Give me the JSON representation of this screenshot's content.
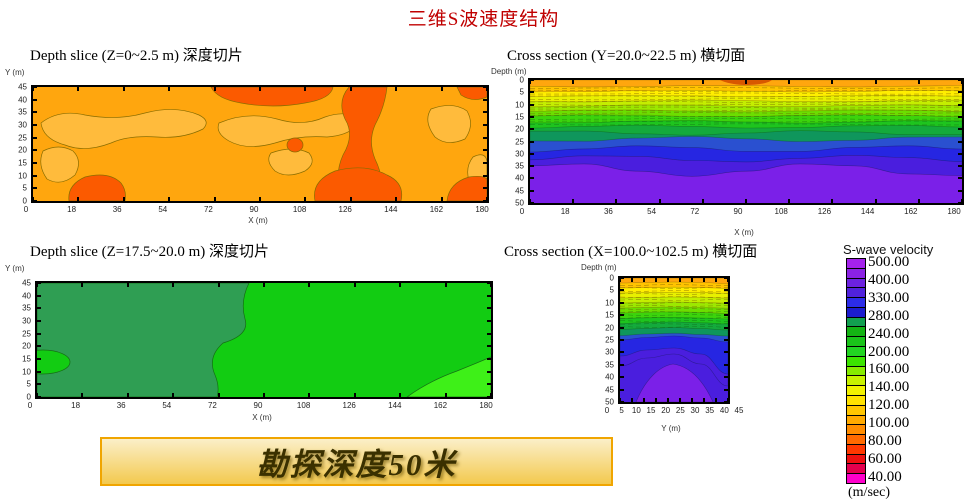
{
  "page": {
    "title": "三维S波速度结构"
  },
  "banner": {
    "text": "勘探深度50米"
  },
  "colors": {
    "title_red": "#C00000",
    "banner_border": "#F0A500",
    "banner_bg_top": "#FBEFC8",
    "banner_bg_bottom": "#F3C94E",
    "banner_text": "#3A3000",
    "orange_main": "#FFA60E",
    "orange_light": "#FFBB3C",
    "red_orange": "#FB5A00",
    "contour_line_warm": "#8A6D00",
    "green_dark": "#2F9E53",
    "green_bright": "#12CC12",
    "green_light": "#3EF018",
    "contour_line_green": "#156E15",
    "purple": "#7B20E8"
  },
  "legend": {
    "title": "S-wave velocity",
    "unit": "(m/sec)",
    "labels": [
      "500.00",
      "400.00",
      "330.00",
      "280.00",
      "240.00",
      "200.00",
      "160.00",
      "140.00",
      "120.00",
      "100.00",
      "80.00",
      "60.00",
      "40.00"
    ],
    "cell_colors": [
      "#A422EC",
      "#8B22E4",
      "#6C22E0",
      "#5022DC",
      "#2C2CE8",
      "#1C1CCE",
      "#12A050",
      "#14B414",
      "#1AC41A",
      "#22D422",
      "#3CE400",
      "#86EC00",
      "#C8F200",
      "#F2F200",
      "#FFE200",
      "#FFC600",
      "#FFAA00",
      "#FF8C00",
      "#FF6A00",
      "#FF3800",
      "#EE1010",
      "#E4004E",
      "#FF00CC"
    ]
  },
  "chart_data": [
    {
      "type": "contour",
      "title": "Depth slice (Z=0~2.5 m) 深度切片",
      "xlabel": "X (m)",
      "ylabel": "Y (m)",
      "xlim": [
        0,
        180
      ],
      "ylim": [
        0,
        45
      ],
      "xticks": [
        0,
        18,
        36,
        54,
        72,
        90,
        108,
        126,
        144,
        162,
        180
      ],
      "yticks": [
        45,
        40,
        35,
        30,
        25,
        20,
        15,
        10,
        5,
        0
      ],
      "bands": [
        {
          "vs_m_sec": "80-100",
          "color": "#FB5A00",
          "note": "red-orange anomalies: patch along top edge x≈70-120 m, vertical zone x≈125-150 m spanning full height, patches along bottom edge, top-right corner"
        },
        {
          "vs_m_sec": "100-120",
          "color": "#FFA60E",
          "note": "dominant orange background"
        },
        {
          "vs_m_sec": "120-140",
          "color": "#FFBB3C",
          "note": "lighter lobes: upper-left band, left-middle blob, centre band x≈75-130 m, right-side patches"
        }
      ]
    },
    {
      "type": "contour",
      "title": "Cross section (Y=20.0~22.5 m) 横切面",
      "xlabel": "X (m)",
      "ylabel": "Depth (m)",
      "xlim": [
        0,
        180
      ],
      "ylim": [
        0,
        50
      ],
      "xticks": [
        0,
        18,
        36,
        54,
        72,
        90,
        108,
        126,
        144,
        162,
        180
      ],
      "yticks": [
        0,
        5,
        10,
        15,
        20,
        25,
        30,
        35,
        40,
        45,
        50
      ],
      "layers": [
        {
          "top_m": 0,
          "bottom_m": 2.5,
          "vs_m_sec": "100-120",
          "color": "#FFA60E"
        },
        {
          "top_m": 2.5,
          "bottom_m": 4.5,
          "vs_m_sec": "120-140",
          "color": "#FFC400"
        },
        {
          "top_m": 4.5,
          "bottom_m": 6.5,
          "vs_m_sec": "140",
          "color": "#FFEE00"
        },
        {
          "top_m": 6.5,
          "bottom_m": 8.5,
          "vs_m_sec": "150",
          "color": "#E8F000"
        },
        {
          "top_m": 8.5,
          "bottom_m": 10.5,
          "vs_m_sec": "160",
          "color": "#C4EE00"
        },
        {
          "top_m": 10.5,
          "bottom_m": 12.5,
          "vs_m_sec": "170",
          "color": "#9CE800"
        },
        {
          "top_m": 12.5,
          "bottom_m": 14.5,
          "vs_m_sec": "180-200",
          "color": "#6CDE00"
        },
        {
          "top_m": 14.5,
          "bottom_m": 17,
          "vs_m_sec": "200-220",
          "color": "#3CD40C"
        },
        {
          "top_m": 17,
          "bottom_m": 19,
          "vs_m_sec": "220-240",
          "color": "#1EC41E"
        },
        {
          "top_m": 19,
          "bottom_m": 21.5,
          "vs_m_sec": "240-260",
          "color": "#14AA3C"
        },
        {
          "top_m": 21.5,
          "bottom_m": 24,
          "vs_m_sec": "260-280",
          "color": "#0F965C"
        },
        {
          "top_m": 24,
          "bottom_m": 28,
          "vs_m_sec": "280-330",
          "color": "#2A50D0"
        },
        {
          "top_m": 28,
          "bottom_m": 32,
          "vs_m_sec": "330-400",
          "color": "#2626E2"
        },
        {
          "top_m": 32,
          "bottom_m": 36.5,
          "vs_m_sec": "400-500",
          "color": "#4A1EDE"
        },
        {
          "top_m": 36.5,
          "bottom_m": 50,
          "vs_m_sec": ">500",
          "color": "#7B20E8"
        }
      ]
    },
    {
      "type": "contour",
      "title": "Depth slice (Z=17.5~20.0 m) 深度切片",
      "xlabel": "X (m)",
      "ylabel": "Y (m)",
      "xlim": [
        0,
        180
      ],
      "ylim": [
        0,
        45
      ],
      "xticks": [
        0,
        18,
        36,
        54,
        72,
        90,
        108,
        126,
        144,
        162,
        180
      ],
      "yticks": [
        45,
        40,
        35,
        30,
        25,
        20,
        15,
        10,
        5,
        0
      ],
      "bands": [
        {
          "vs_m_sec": "240-280",
          "color": "#2F9E53",
          "note": "dark sea-green zone over western half (x < ≈85 m)"
        },
        {
          "vs_m_sec": "200-240",
          "color": "#12CC12",
          "note": "bright green zone over eastern half"
        },
        {
          "vs_m_sec": "160-200",
          "color": "#3EF018",
          "note": "small lens at west edge y≈10-15 m and wedge in south-east corner"
        }
      ]
    },
    {
      "type": "contour",
      "title": "Cross section (X=100.0~102.5 m) 横切面",
      "xlabel": "Y (m)",
      "ylabel": "Depth (m)",
      "xlim": [
        0,
        45
      ],
      "ylim": [
        0,
        50
      ],
      "xticks": [
        0,
        5,
        10,
        15,
        20,
        25,
        30,
        35,
        40,
        45
      ],
      "yticks": [
        0,
        5,
        10,
        15,
        20,
        25,
        30,
        35,
        40,
        45,
        50
      ],
      "layers": [
        {
          "top_m": 0,
          "bottom_m": 2,
          "vs_m_sec": "100-120",
          "color": "#FFA60E"
        },
        {
          "top_m": 2,
          "bottom_m": 4,
          "vs_m_sec": "120-140",
          "color": "#FFC400"
        },
        {
          "top_m": 4,
          "bottom_m": 6,
          "vs_m_sec": "140",
          "color": "#FFEE00"
        },
        {
          "top_m": 6,
          "bottom_m": 8,
          "vs_m_sec": "150",
          "color": "#E8F000"
        },
        {
          "top_m": 8,
          "bottom_m": 10,
          "vs_m_sec": "160",
          "color": "#C4EE00"
        },
        {
          "top_m": 10,
          "bottom_m": 12,
          "vs_m_sec": "170",
          "color": "#9CE800"
        },
        {
          "top_m": 12,
          "bottom_m": 14,
          "vs_m_sec": "180-200",
          "color": "#6CDE00"
        },
        {
          "top_m": 14,
          "bottom_m": 16.5,
          "vs_m_sec": "200-220",
          "color": "#3CD40C"
        },
        {
          "top_m": 16.5,
          "bottom_m": 18.5,
          "vs_m_sec": "220-240",
          "color": "#1EC41E"
        },
        {
          "top_m": 18.5,
          "bottom_m": 21,
          "vs_m_sec": "240-260",
          "color": "#14AA3C"
        },
        {
          "top_m": 21,
          "bottom_m": 23.5,
          "vs_m_sec": "260-280",
          "color": "#0F965C"
        },
        {
          "top_m": 23.5,
          "bottom_m": 29,
          "vs_m_sec": "280-330",
          "color": "#2A50D0"
        },
        {
          "top_m": 29,
          "bottom_m": 33,
          "vs_m_sec": "330-400",
          "color": "#2626E2"
        },
        {
          "top_m": 33,
          "bottom_m": 50,
          "vs_m_sec": "400-500",
          "color": "#4A1EDE"
        },
        {
          "top_m": 35,
          "bottom_m": 50,
          "vs_m_sec": ">500 (dome centred at Y≈25 m, apex ≈35 m depth)",
          "color": "#7B20E8"
        }
      ]
    }
  ]
}
